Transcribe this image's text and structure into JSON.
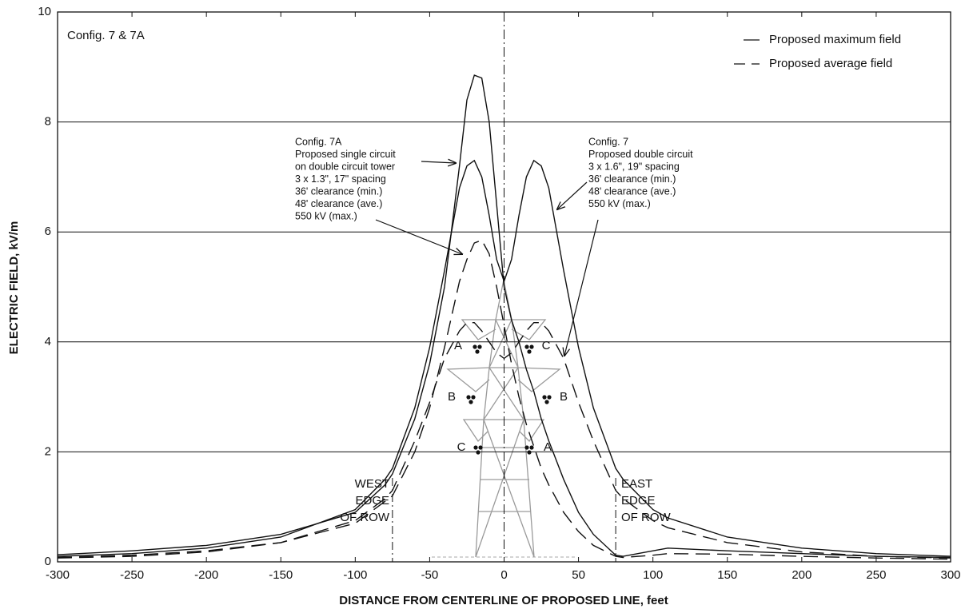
{
  "chart_data": {
    "type": "line",
    "ylabel": "ELECTRIC FIELD, kV/m",
    "xlabel": "DISTANCE FROM CENTERLINE OF PROPOSED LINE, feet",
    "xlim": [
      -300,
      300
    ],
    "ylim": [
      0,
      10
    ],
    "xticks": [
      -300,
      -250,
      -200,
      -150,
      -100,
      -50,
      0,
      50,
      100,
      150,
      200,
      250,
      300
    ],
    "yticks": [
      0,
      2,
      4,
      6,
      8,
      10
    ],
    "grid": true,
    "legend_position": "upper right",
    "legend": [
      {
        "label": "Proposed maximum field",
        "style": "solid"
      },
      {
        "label": "Proposed average field",
        "style": "dashed"
      }
    ],
    "x": [
      -300,
      -250,
      -200,
      -150,
      -100,
      -80,
      -75,
      -60,
      -50,
      -40,
      -30,
      -25,
      -20,
      -15,
      -10,
      -5,
      0,
      5,
      10,
      15,
      20,
      25,
      30,
      40,
      50,
      60,
      75,
      80,
      100,
      110,
      150,
      200,
      250,
      300
    ],
    "series": [
      {
        "config": "Config. 7A",
        "style": "solid",
        "color": "#111111",
        "values": [
          0.13,
          0.2,
          0.3,
          0.5,
          0.9,
          1.4,
          1.6,
          2.6,
          3.6,
          5.0,
          7.2,
          8.4,
          8.85,
          8.8,
          8.0,
          6.5,
          5.0,
          4.4,
          4.0,
          3.5,
          3.1,
          2.6,
          2.2,
          1.5,
          0.9,
          0.5,
          0.12,
          0.1,
          0.2,
          0.25,
          0.2,
          0.15,
          0.1,
          0.08
        ]
      },
      {
        "config": "Config. 7A",
        "style": "dashed",
        "color": "#111111",
        "values": [
          0.08,
          0.12,
          0.2,
          0.35,
          0.7,
          1.1,
          1.2,
          2.0,
          2.8,
          3.9,
          5.1,
          5.5,
          5.8,
          5.85,
          5.6,
          5.0,
          4.3,
          3.6,
          3.0,
          2.5,
          2.1,
          1.7,
          1.4,
          0.9,
          0.55,
          0.3,
          0.1,
          0.08,
          0.12,
          0.15,
          0.14,
          0.1,
          0.07,
          0.05
        ]
      },
      {
        "config": "Config. 7",
        "style": "solid",
        "color": "#111111",
        "values": [
          0.1,
          0.15,
          0.25,
          0.45,
          0.95,
          1.5,
          1.7,
          2.8,
          3.9,
          5.3,
          6.8,
          7.2,
          7.3,
          7.0,
          6.3,
          5.5,
          5.1,
          5.5,
          6.3,
          7.0,
          7.3,
          7.2,
          6.8,
          5.3,
          3.9,
          2.8,
          1.7,
          1.5,
          0.95,
          0.8,
          0.45,
          0.25,
          0.15,
          0.1
        ]
      },
      {
        "config": "Config. 7",
        "style": "dashed",
        "color": "#111111",
        "values": [
          0.07,
          0.1,
          0.18,
          0.35,
          0.75,
          1.15,
          1.3,
          2.2,
          2.9,
          3.7,
          4.2,
          4.35,
          4.35,
          4.2,
          4.0,
          3.8,
          3.7,
          3.8,
          4.0,
          4.2,
          4.35,
          4.35,
          4.2,
          3.7,
          2.9,
          2.2,
          1.3,
          1.15,
          0.75,
          0.62,
          0.35,
          0.18,
          0.1,
          0.07
        ]
      }
    ],
    "centerline": 0,
    "row_edges": [
      -75,
      75
    ],
    "annotations": {
      "config_title": "Config. 7 & 7A",
      "config_7a": [
        "Config. 7A",
        "Proposed single circuit",
        "on double circuit tower",
        "3 x 1.3\", 17\" spacing",
        "36' clearance (min.)",
        "48' clearance (ave.)",
        "550 kV (max.)"
      ],
      "config_7": [
        "Config. 7",
        "Proposed double circuit",
        "3 x 1.6\", 19\" spacing",
        "36' clearance (min.)",
        "48' clearance (ave.)",
        "550 kV (max.)"
      ],
      "west_edge": [
        "WEST",
        "EDGE",
        "OF ROW"
      ],
      "east_edge": [
        "EAST",
        "EDGE",
        "OF ROW"
      ]
    },
    "phase_labels": [
      "A",
      "C",
      "B",
      "B",
      "C",
      "A"
    ]
  }
}
